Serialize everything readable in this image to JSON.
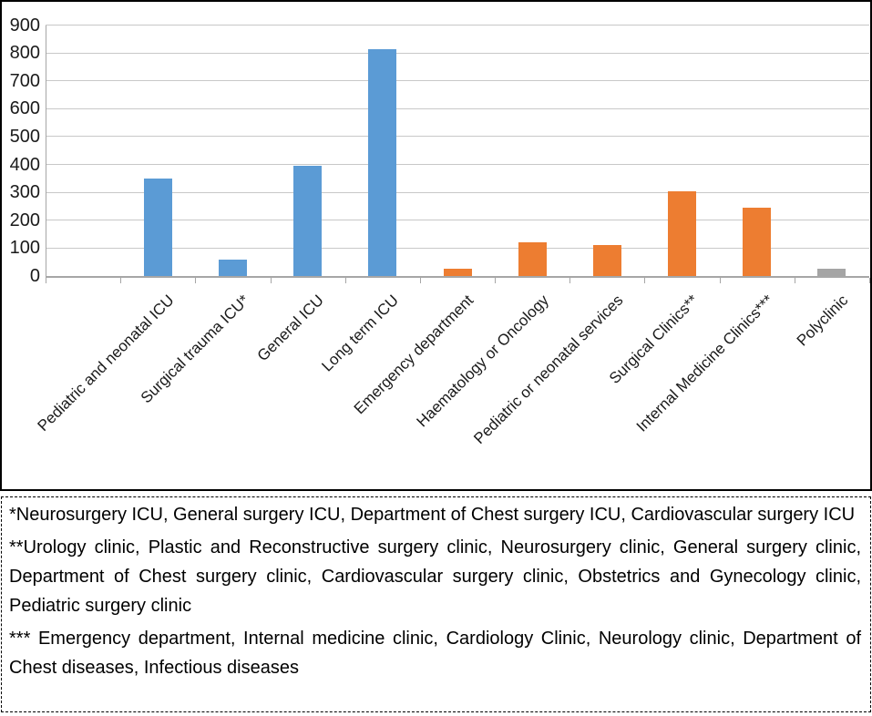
{
  "chart_data": {
    "type": "bar",
    "title": "",
    "xlabel": "",
    "ylabel": "",
    "categories": [
      "Pediatric and neonatal ICU",
      "Surgical trauma ICU*",
      "General ICU",
      "Long term ICU",
      "Emergency department",
      "Haematology or Oncology",
      "Pediatric or neonatal services",
      "Surgical Clinics**",
      "Internal Medicine Clinics***",
      "Polyclinic"
    ],
    "values": [
      350,
      60,
      395,
      815,
      25,
      120,
      110,
      305,
      245,
      25
    ],
    "bar_colors": [
      "#5B9BD5",
      "#5B9BD5",
      "#5B9BD5",
      "#5B9BD5",
      "#ED7D31",
      "#ED7D31",
      "#ED7D31",
      "#ED7D31",
      "#ED7D31",
      "#A5A5A5"
    ],
    "ylim": [
      0,
      900
    ],
    "ytick_step": 100,
    "grid": true,
    "legend_position": "none",
    "leading_empty_category": true,
    "x_label_rotation_deg": 45
  },
  "colors": {
    "series_blue": "#5B9BD5",
    "series_orange": "#ED7D31",
    "series_gray": "#A5A5A5",
    "gridline": "#c8c8c8",
    "axis": "#a6a6a6",
    "frame": "#000000",
    "text": "#1a1a1a"
  },
  "footnotes": {
    "note1": "*Neurosurgery ICU, General surgery ICU, Department of Chest surgery ICU, Cardiovascular surgery ICU",
    "note2": "**Urology clinic, Plastic and Reconstructive surgery clinic, Neurosurgery clinic, General surgery clinic, Department of Chest surgery clinic, Cardiovascular surgery clinic, Obstetrics  and Gynecology clinic, Pediatric surgery clinic",
    "note3": "*** Emergency department, Internal medicine clinic, Cardiology Clinic, Neurology clinic, Department of Chest diseases, Infectious diseases"
  }
}
